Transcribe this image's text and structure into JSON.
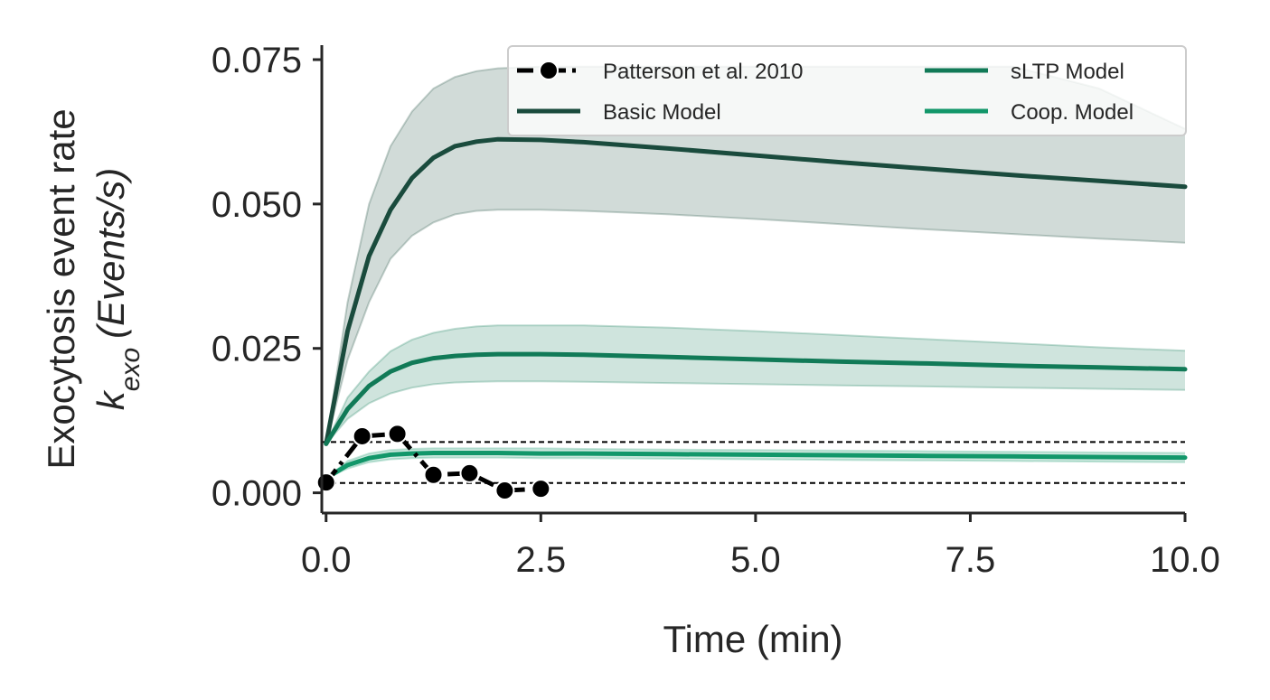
{
  "chart_data": {
    "type": "line",
    "xlabel": "Time (min)",
    "ylabel_line1": "Exocytosis event rate",
    "ylabel_line2": {
      "symbol": "k",
      "subscript": "exo",
      "unit": "(Events/s)"
    },
    "xlim": [
      -0.05,
      10.0
    ],
    "ylim": [
      -0.0035,
      0.0775
    ],
    "x_ticks": [
      0.0,
      2.5,
      5.0,
      7.5,
      10.0
    ],
    "x_tick_labels": [
      "0.0",
      "2.5",
      "5.0",
      "7.5",
      "10.0"
    ],
    "y_ticks": [
      0.0,
      0.025,
      0.05,
      0.075
    ],
    "y_tick_labels": [
      "0.000",
      "0.025",
      "0.050",
      "0.075"
    ],
    "grid": false,
    "legend_position": "top-right",
    "legend_columns": 2,
    "reference_lines": [
      0.0088,
      0.0017
    ],
    "colors": {
      "patterson": "#000000",
      "basic": "#1a4b3d",
      "sltp": "#117a57",
      "coop": "#12976a",
      "reference": "#000000"
    },
    "observations": {
      "name": "Patterson et al. 2010",
      "x": [
        0.0,
        0.42,
        0.83,
        1.25,
        1.67,
        2.08,
        2.5
      ],
      "y": [
        0.0018,
        0.0098,
        0.0102,
        0.0031,
        0.0034,
        0.0004,
        0.0007
      ]
    },
    "model_x": [
      0.0,
      0.25,
      0.5,
      0.75,
      1.0,
      1.25,
      1.5,
      1.75,
      2.0,
      2.5,
      3.0,
      4.0,
      5.0,
      6.0,
      7.0,
      8.0,
      9.0,
      10.0
    ],
    "series": [
      {
        "name": "Basic Model",
        "mean": [
          0.0085,
          0.028,
          0.041,
          0.049,
          0.0545,
          0.058,
          0.06,
          0.0608,
          0.0612,
          0.0611,
          0.0607,
          0.0596,
          0.0584,
          0.0572,
          0.0561,
          0.055,
          0.054,
          0.053
        ],
        "lower": [
          0.0085,
          0.023,
          0.033,
          0.0405,
          0.0445,
          0.0468,
          0.0482,
          0.0488,
          0.049,
          0.049,
          0.0488,
          0.0482,
          0.0474,
          0.0465,
          0.0456,
          0.0448,
          0.044,
          0.0433
        ],
        "upper": [
          0.0085,
          0.033,
          0.05,
          0.06,
          0.066,
          0.07,
          0.072,
          0.073,
          0.0735,
          0.0738,
          0.0738,
          0.0738,
          0.0738,
          0.0738,
          0.0738,
          0.0738,
          0.07,
          0.063
        ]
      },
      {
        "name": "sLTP Model",
        "mean": [
          0.0085,
          0.0145,
          0.0185,
          0.021,
          0.0225,
          0.0233,
          0.0237,
          0.0239,
          0.024,
          0.024,
          0.0239,
          0.0235,
          0.0231,
          0.0227,
          0.0224,
          0.022,
          0.0217,
          0.0214
        ],
        "lower": [
          0.0085,
          0.0128,
          0.0155,
          0.0172,
          0.0182,
          0.0188,
          0.0191,
          0.0192,
          0.0193,
          0.0193,
          0.0192,
          0.019,
          0.0188,
          0.0186,
          0.0184,
          0.0182,
          0.018,
          0.0178
        ],
        "upper": [
          0.0085,
          0.0165,
          0.021,
          0.0245,
          0.0265,
          0.0277,
          0.0284,
          0.0288,
          0.029,
          0.029,
          0.029,
          0.0286,
          0.028,
          0.0273,
          0.0266,
          0.0259,
          0.0252,
          0.0246
        ]
      },
      {
        "name": "Coop. Model",
        "mean": [
          0.0025,
          0.0048,
          0.006,
          0.0066,
          0.0068,
          0.0069,
          0.0069,
          0.0069,
          0.0069,
          0.0068,
          0.0068,
          0.0067,
          0.0066,
          0.0065,
          0.0064,
          0.0063,
          0.0062,
          0.0061
        ],
        "lower": [
          0.0025,
          0.0042,
          0.0053,
          0.0058,
          0.006,
          0.0061,
          0.0061,
          0.0061,
          0.0061,
          0.006,
          0.006,
          0.0059,
          0.0058,
          0.0057,
          0.0056,
          0.0055,
          0.0054,
          0.0053
        ],
        "upper": [
          0.0025,
          0.0055,
          0.0068,
          0.0074,
          0.0076,
          0.0077,
          0.0077,
          0.0077,
          0.0077,
          0.0077,
          0.0076,
          0.0075,
          0.0074,
          0.0073,
          0.0072,
          0.0071,
          0.007,
          0.0069
        ]
      }
    ]
  }
}
